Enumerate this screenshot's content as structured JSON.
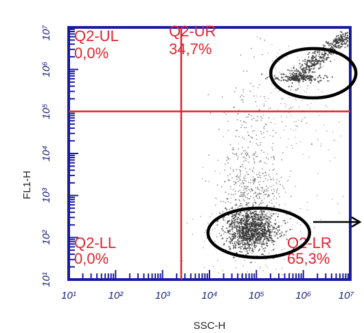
{
  "chart_data": {
    "type": "scatter",
    "xlabel": "SSC-H",
    "ylabel": "FL1-H",
    "scale": "log",
    "xlim": [
      10,
      10000000
    ],
    "ylim": [
      10,
      10000000
    ],
    "x_ticks": [
      "10¹",
      "10²",
      "10³",
      "10⁴",
      "10⁵",
      "10⁶",
      "10⁷"
    ],
    "y_ticks": [
      "10¹",
      "10²",
      "10³",
      "10⁴",
      "10⁵",
      "10⁶",
      "10⁷"
    ],
    "gate": {
      "x": 2500,
      "y": 100000
    },
    "quadrants": [
      {
        "id": "Q2-UL",
        "percent": "0,0%"
      },
      {
        "id": "Q2-UR",
        "percent": "34,7%"
      },
      {
        "id": "Q2-LL",
        "percent": "0,0%"
      },
      {
        "id": "Q2-LR",
        "percent": "65,3%"
      }
    ],
    "populations": [
      {
        "quadrant": "Q2-LR",
        "center": {
          "x": 75000,
          "y": 150
        }
      },
      {
        "quadrant": "Q2-UR",
        "center": {
          "x": 2000000,
          "y": 2500000
        }
      }
    ],
    "colors": {
      "gate": "#e0232d",
      "frame": "#1a1aa0",
      "dots": "#333333",
      "circle": "#000000"
    }
  }
}
